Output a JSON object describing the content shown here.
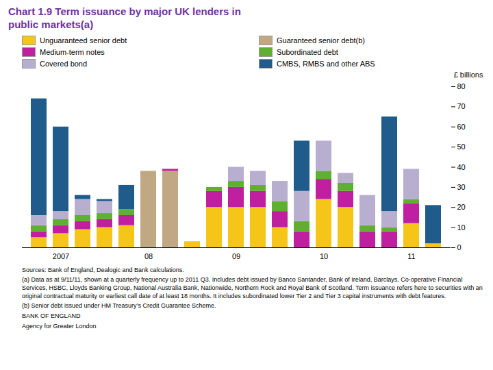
{
  "chart_data": {
    "type": "bar",
    "stacked": true,
    "legend": "top",
    "grid": false,
    "title": "Chart 1.9  Term issuance by major UK lenders in\npublic markets(a)",
    "title_color": "#7030A0",
    "ylabel": "£ billions",
    "ylim": [
      0,
      80
    ],
    "yticks": [
      0,
      10,
      20,
      30,
      40,
      50,
      60,
      70,
      80
    ],
    "categories": [
      null,
      "2007",
      null,
      null,
      null,
      "08",
      null,
      null,
      null,
      "09",
      null,
      null,
      null,
      "10",
      null,
      null,
      null,
      "11",
      null
    ],
    "series": [
      {
        "name": "Unguaranteed senior debt",
        "color": "#F5C518",
        "values": [
          5,
          7,
          9,
          10,
          11,
          0,
          0,
          3,
          20,
          20,
          20,
          10,
          0,
          24,
          20,
          0,
          0,
          12,
          2
        ]
      },
      {
        "name": "Guaranteed senior debt(b)",
        "color": "#C0A882",
        "values": [
          0,
          0,
          0,
          0,
          0,
          38,
          38,
          0,
          0,
          0,
          0,
          0,
          0,
          0,
          0,
          0,
          0,
          0,
          0
        ]
      },
      {
        "name": "Medium-term notes",
        "color": "#C020A0",
        "values": [
          3,
          4,
          4,
          4,
          5,
          0,
          1,
          0,
          8,
          10,
          8,
          8,
          8,
          10,
          8,
          8,
          8,
          10,
          0
        ]
      },
      {
        "name": "Subordinated debt",
        "color": "#60B030",
        "values": [
          3,
          3,
          3,
          3,
          3,
          0,
          0,
          0,
          2,
          3,
          3,
          5,
          5,
          4,
          4,
          3,
          2,
          2,
          0
        ]
      },
      {
        "name": "Covered bond",
        "color": "#B8AED0",
        "values": [
          5,
          4,
          8,
          6,
          0,
          0,
          0,
          0,
          0,
          7,
          7,
          10,
          15,
          15,
          5,
          15,
          8,
          15,
          0
        ]
      },
      {
        "name": "CMBS, RMBS and other ABS",
        "color": "#1F5C8B",
        "values": [
          58,
          42,
          2,
          1,
          12,
          0,
          0,
          0,
          0,
          0,
          0,
          0,
          25,
          0,
          0,
          0,
          47,
          0,
          19
        ]
      }
    ],
    "annotations": [
      "Sources:  Bank of England, Dealogic and Bank calculations.",
      "(a) Data as at 9/11/11, shown at a quarterly frequency up to 2011 Q3.  Includes debt issued  by Banco Santander, Bank of Ireland, Barclays, Co-operative Financial Services, HSBC, Lloyds Banking Group, National Australia Bank, Nationwide, Northern Rock and Royal Bank of Scotland.  Term issuance refers here to securities with an original contractual maturity or earliest call date of at least 18 months.  It includes subordinated lower Tier 2 and Tier 3 capital instruments with debt features.",
      "(b) Senior debt issued under HM Treasury’s Credit Guarantee Scheme.",
      "BANK OF ENGLAND",
      "Agency for Greater London"
    ]
  }
}
